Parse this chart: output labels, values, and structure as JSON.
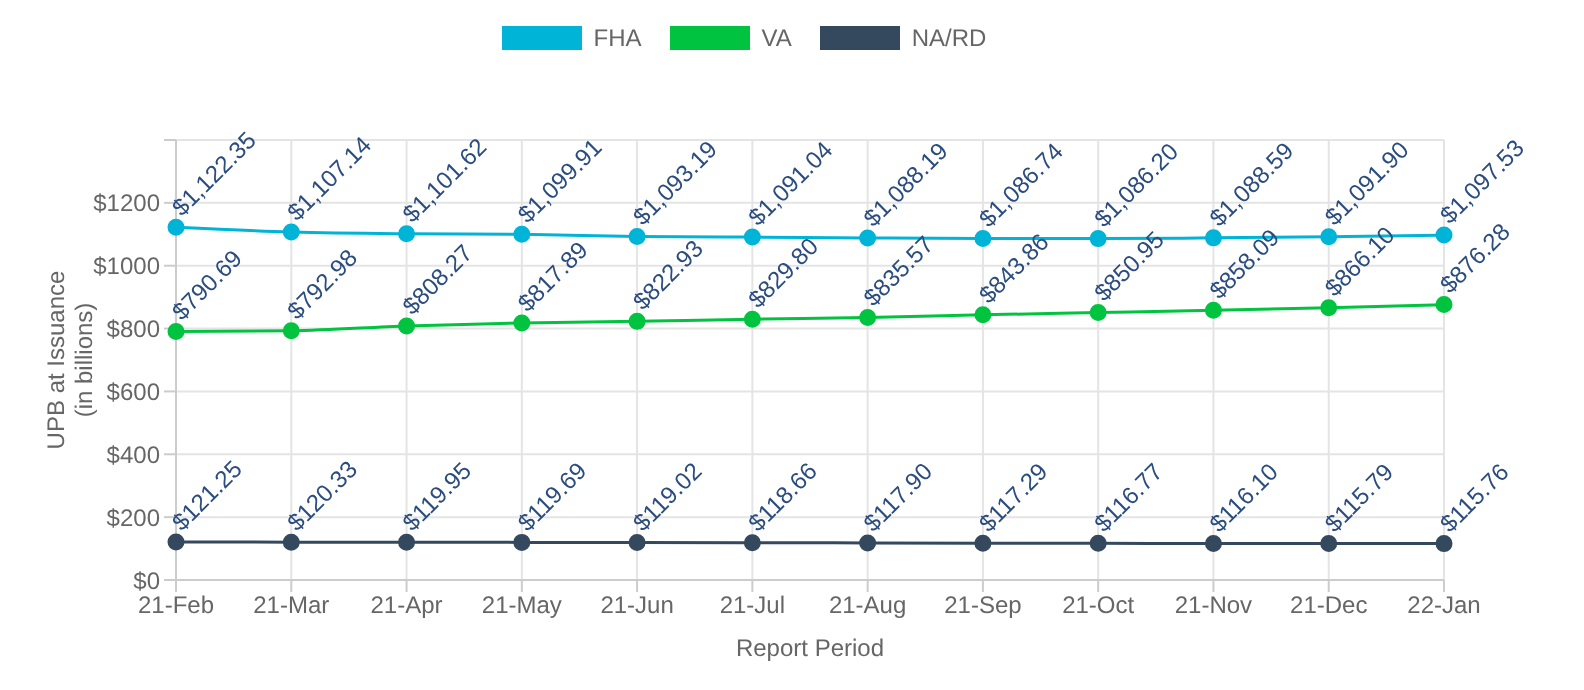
{
  "chart_data": {
    "type": "line",
    "xlabel": "Report Period",
    "ylabel": "UPB at Issuance\n(in billions)",
    "categories": [
      "21-Feb",
      "21-Mar",
      "21-Apr",
      "21-May",
      "21-Jun",
      "21-Jul",
      "21-Aug",
      "21-Sep",
      "21-Oct",
      "21-Nov",
      "21-Dec",
      "22-Jan"
    ],
    "series": [
      {
        "name": "FHA",
        "color": "#00b4d8",
        "values": [
          1122.35,
          1107.14,
          1101.62,
          1099.91,
          1093.19,
          1091.04,
          1088.19,
          1086.74,
          1086.2,
          1088.59,
          1091.9,
          1097.53
        ],
        "value_labels": [
          "$1,122.35",
          "$1,107.14",
          "$1,101.62",
          "$1,099.91",
          "$1,093.19",
          "$1,091.04",
          "$1,088.19",
          "$1,086.74",
          "$1,086.20",
          "$1,088.59",
          "$1,091.90",
          "$1,097.53"
        ]
      },
      {
        "name": "VA",
        "color": "#00c43f",
        "values": [
          790.69,
          792.98,
          808.27,
          817.89,
          822.93,
          829.8,
          835.57,
          843.86,
          850.95,
          858.09,
          866.1,
          876.28
        ],
        "value_labels": [
          "$790.69",
          "$792.98",
          "$808.27",
          "$817.89",
          "$822.93",
          "$829.80",
          "$835.57",
          "$843.86",
          "$850.95",
          "$858.09",
          "$866.10",
          "$876.28"
        ]
      },
      {
        "name": "NA/RD",
        "color": "#34495e",
        "values": [
          121.25,
          120.33,
          119.95,
          119.69,
          119.02,
          118.66,
          117.9,
          117.29,
          116.77,
          116.1,
          115.79,
          115.76
        ],
        "value_labels": [
          "$121.25",
          "$120.33",
          "$119.95",
          "$119.69",
          "$119.02",
          "$118.66",
          "$117.90",
          "$117.29",
          "$116.77",
          "$116.10",
          "$115.79",
          "$115.76"
        ]
      }
    ],
    "ylim": [
      0,
      1400
    ],
    "yticks": [
      {
        "value": 0,
        "label": "$0"
      },
      {
        "value": 200,
        "label": "$200"
      },
      {
        "value": 400,
        "label": "$400"
      },
      {
        "value": 600,
        "label": "$600"
      },
      {
        "value": 800,
        "label": "$800"
      },
      {
        "value": 1000,
        "label": "$1000"
      },
      {
        "value": 1200,
        "label": "$1200"
      },
      {
        "value": 1400,
        "label": null
      }
    ],
    "grid": true,
    "legend": "top",
    "marker": "circle",
    "line_style": "solid"
  }
}
